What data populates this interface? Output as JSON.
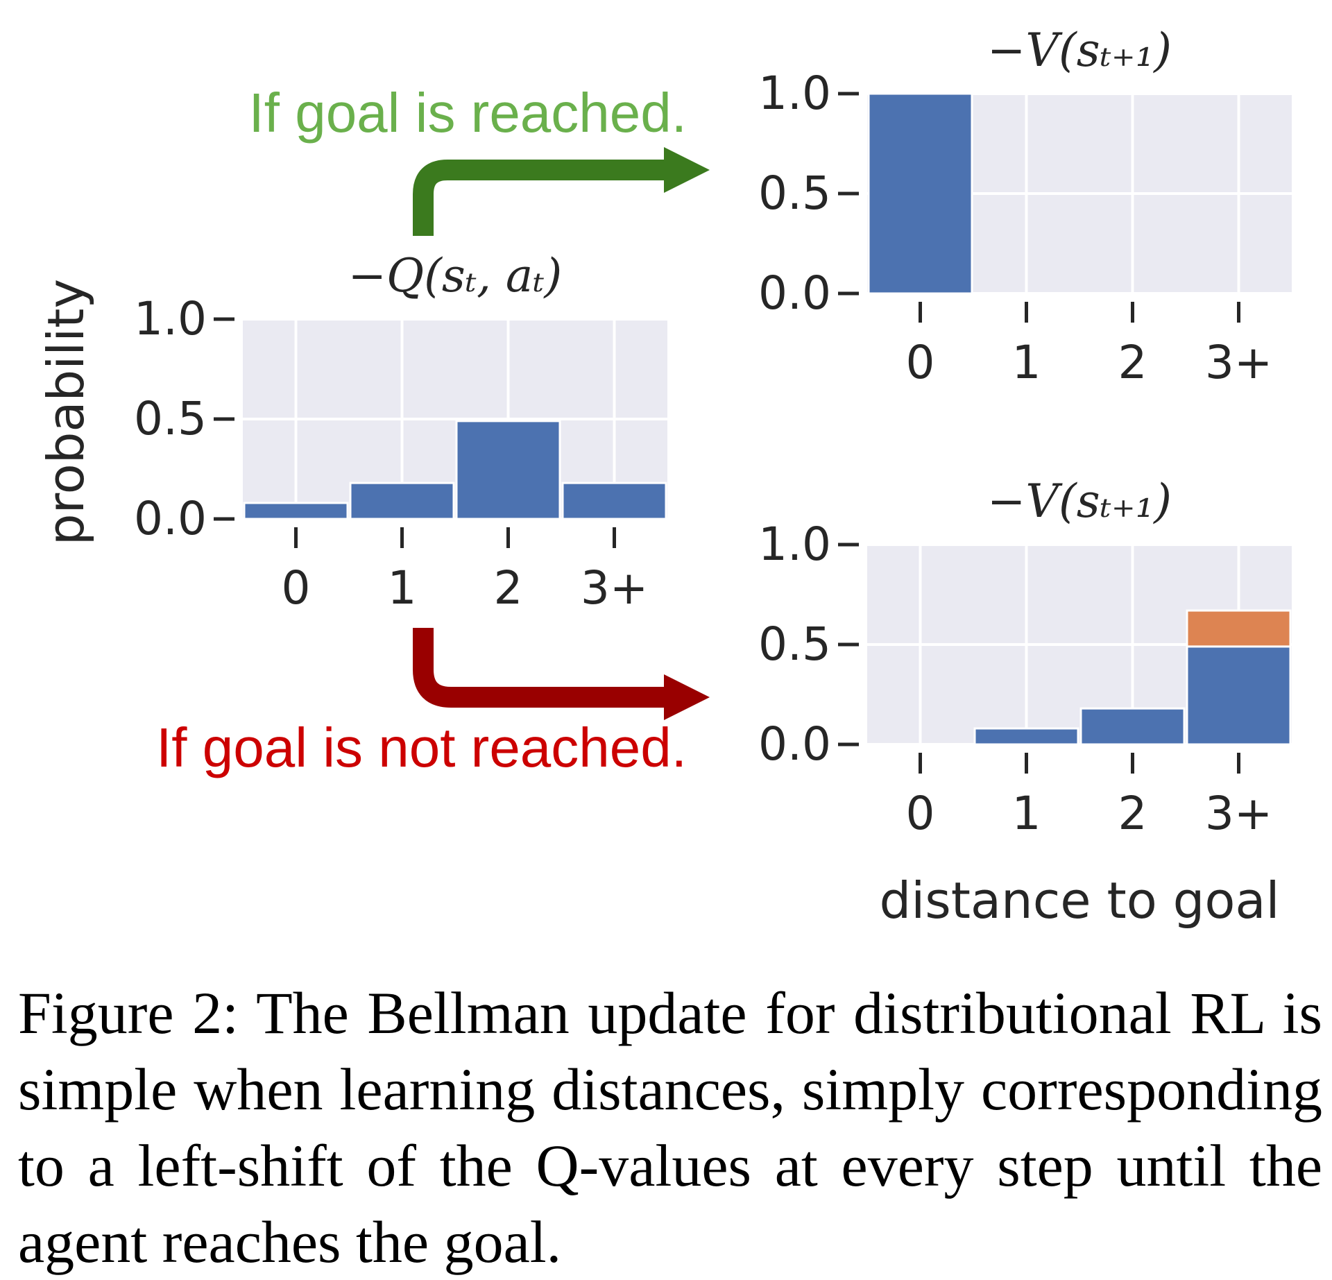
{
  "chart_data": [
    {
      "id": "q",
      "type": "bar",
      "title": "−Q(sₜ, aₜ)",
      "ylabel": "probability",
      "xlabel": "",
      "categories": [
        "0",
        "1",
        "2",
        "3+"
      ],
      "ylim": [
        0,
        1.0
      ],
      "yticks": [
        "0.0",
        "0.5",
        "1.0"
      ],
      "series": [
        {
          "values": [
            0.08,
            0.18,
            0.49,
            0.18
          ],
          "color": "#4c72b0"
        }
      ],
      "grid": true
    },
    {
      "id": "v_reached",
      "type": "bar",
      "title": "−V(sₜ₊₁)",
      "xlabel": "",
      "categories": [
        "0",
        "1",
        "2",
        "3+"
      ],
      "ylim": [
        0,
        1.0
      ],
      "yticks": [
        "0.0",
        "0.5",
        "1.0"
      ],
      "series": [
        {
          "values": [
            1.0,
            0,
            0,
            0
          ],
          "color": "#4c72b0"
        }
      ],
      "grid": true
    },
    {
      "id": "v_not_reached",
      "type": "bar",
      "title": "−V(sₜ₊₁)",
      "xlabel": "distance to goal",
      "categories": [
        "0",
        "1",
        "2",
        "3+"
      ],
      "ylim": [
        0,
        1.0
      ],
      "yticks": [
        "0.0",
        "0.5",
        "1.0"
      ],
      "series": [
        {
          "values": [
            0,
            0.08,
            0.18,
            0.49
          ],
          "color": "#4c72b0"
        },
        {
          "values": [
            0,
            0,
            0,
            0.18
          ],
          "color": "#dd8452"
        }
      ],
      "stacked": true,
      "grid": true
    }
  ],
  "annotations": {
    "reached": {
      "text": "If goal is reached.",
      "color": "#6ab04c"
    },
    "not_reached": {
      "text": "If goal is not reached.",
      "color": "#cc0000"
    }
  },
  "arrow_colors": {
    "reached": "#3b7a1e",
    "not_reached": "#990000"
  },
  "caption": "Figure 2: The Bellman update for distributional RL is simple when learning distances, simply corresponding to a left-shift of the Q-values at every step until the agent reaches the goal."
}
